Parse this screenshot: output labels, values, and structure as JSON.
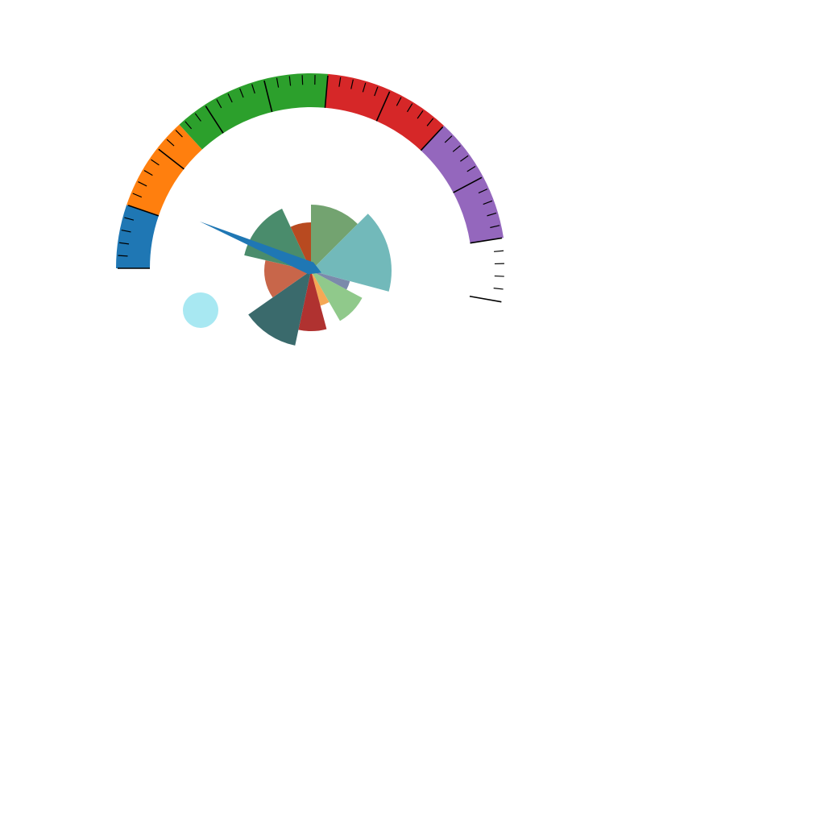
{
  "chart_data": [
    {
      "type": "gauge",
      "title": "",
      "range": [
        0,
        1
      ],
      "start_angle_deg": 180,
      "end_angle_deg": -10,
      "bands": [
        {
          "from": 0.0,
          "to": 0.1,
          "color": "#1f77b4"
        },
        {
          "from": 0.1,
          "to": 0.25,
          "color": "#ff7f0e"
        },
        {
          "from": 0.25,
          "to": 0.5,
          "color": "#2ca02c"
        },
        {
          "from": 0.5,
          "to": 0.7,
          "color": "#d62728"
        },
        {
          "from": 0.7,
          "to": 0.9,
          "color": "#9467bd"
        }
      ],
      "major_ticks": 11,
      "minor_per_major": 5,
      "needle": {
        "value": 0.12,
        "color": "#1f77b4"
      },
      "marker": {
        "color": "#a8e8f2"
      }
    },
    {
      "type": "polar_bar",
      "title": "",
      "sectors": [
        {
          "start_deg": 0,
          "end_deg": 45,
          "radius": 0.82,
          "color": "#73a370"
        },
        {
          "start_deg": 45,
          "end_deg": 105,
          "radius": 1.0,
          "color": "#72b9ba"
        },
        {
          "start_deg": 105,
          "end_deg": 118,
          "radius": 0.5,
          "color": "#7b8aab"
        },
        {
          "start_deg": 118,
          "end_deg": 150,
          "radius": 0.72,
          "color": "#90c98b"
        },
        {
          "start_deg": 150,
          "end_deg": 165,
          "radius": 0.45,
          "color": "#f5a855"
        },
        {
          "start_deg": 165,
          "end_deg": 192,
          "radius": 0.75,
          "color": "#b03230"
        },
        {
          "start_deg": 192,
          "end_deg": 235,
          "radius": 0.95,
          "color": "#3a6a6c"
        },
        {
          "start_deg": 235,
          "end_deg": 283,
          "radius": 0.58,
          "color": "#c8664a"
        },
        {
          "start_deg": 283,
          "end_deg": 335,
          "radius": 0.85,
          "color": "#4a8c6c"
        },
        {
          "start_deg": 335,
          "end_deg": 360,
          "radius": 0.6,
          "color": "#b84a20"
        }
      ]
    }
  ]
}
